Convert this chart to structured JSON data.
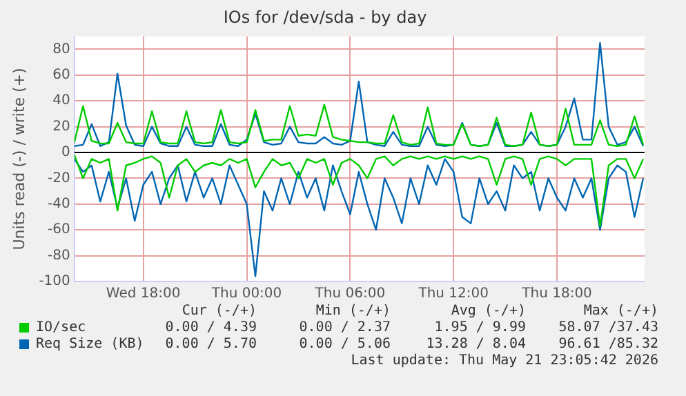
{
  "chart_data": {
    "type": "line",
    "title": "IOs for /dev/sda - by day",
    "ylabel": "Units read (-) / write (+)",
    "x": [
      "2026-05-20T14:00",
      "2026-05-20T14:30",
      "2026-05-20T15:00",
      "2026-05-20T15:30",
      "2026-05-20T16:00",
      "2026-05-20T16:30",
      "2026-05-20T17:00",
      "2026-05-20T17:30",
      "2026-05-20T18:00",
      "2026-05-20T18:30",
      "2026-05-20T19:00",
      "2026-05-20T19:30",
      "2026-05-20T20:00",
      "2026-05-20T20:30",
      "2026-05-20T21:00",
      "2026-05-20T21:30",
      "2026-05-20T22:00",
      "2026-05-20T22:30",
      "2026-05-20T23:00",
      "2026-05-20T23:30",
      "2026-05-21T00:00",
      "2026-05-21T00:30",
      "2026-05-21T01:00",
      "2026-05-21T01:30",
      "2026-05-21T02:00",
      "2026-05-21T02:30",
      "2026-05-21T03:00",
      "2026-05-21T03:30",
      "2026-05-21T04:00",
      "2026-05-21T04:30",
      "2026-05-21T05:00",
      "2026-05-21T05:30",
      "2026-05-21T06:00",
      "2026-05-21T06:30",
      "2026-05-21T07:00",
      "2026-05-21T07:30",
      "2026-05-21T08:00",
      "2026-05-21T08:30",
      "2026-05-21T09:00",
      "2026-05-21T09:30",
      "2026-05-21T10:00",
      "2026-05-21T10:30",
      "2026-05-21T11:00",
      "2026-05-21T11:30",
      "2026-05-21T12:00",
      "2026-05-21T12:30",
      "2026-05-21T13:00",
      "2026-05-21T13:30",
      "2026-05-21T14:00",
      "2026-05-21T14:30",
      "2026-05-21T15:00",
      "2026-05-21T15:30",
      "2026-05-21T16:00",
      "2026-05-21T16:30",
      "2026-05-21T17:00",
      "2026-05-21T17:30",
      "2026-05-21T18:00",
      "2026-05-21T18:30",
      "2026-05-21T19:00",
      "2026-05-21T19:30",
      "2026-05-21T20:00",
      "2026-05-21T20:30",
      "2026-05-21T21:00",
      "2026-05-21T21:30",
      "2026-05-21T22:00",
      "2026-05-21T22:30",
      "2026-05-21T23:00"
    ],
    "series": [
      {
        "color": "#00cc00",
        "values": [
          -2,
          -20,
          -5,
          -8,
          -5,
          -45,
          -10,
          -8,
          -5,
          -3,
          -8,
          -35,
          -10,
          -5,
          -15,
          -10,
          -8,
          -10,
          -5,
          -8,
          -5,
          -27,
          -15,
          -5,
          -10,
          -8,
          -20,
          -5,
          -8,
          -5,
          -25,
          -8,
          -5,
          -10,
          -20,
          -5,
          -3,
          -10,
          -5,
          -3,
          -5,
          -3,
          -5,
          -3,
          -5,
          -3,
          -5,
          -3,
          -5,
          -25,
          -5,
          -3,
          -5,
          -25,
          -5,
          -3,
          -5,
          -10,
          -5,
          -5,
          -5,
          -57,
          -10,
          -5,
          -5,
          -20,
          -5
        ]
      },
      {
        "name": "IO/sec",
        "color": "#00cc00",
        "values": [
          8,
          36,
          9,
          7,
          7,
          23,
          8,
          7,
          7,
          32,
          8,
          7,
          7,
          32,
          8,
          7,
          8,
          33,
          8,
          7,
          8,
          33,
          9,
          10,
          10,
          36,
          13,
          14,
          13,
          37,
          12,
          10,
          9,
          8,
          8,
          7,
          7,
          29,
          8,
          6,
          7,
          35,
          7,
          6,
          6,
          22,
          6,
          5,
          6,
          27,
          6,
          5,
          6,
          31,
          6,
          5,
          6,
          34,
          6,
          6,
          6,
          25,
          6,
          5,
          6,
          28,
          6
        ]
      },
      {
        "color": "#0066b3",
        "values": [
          -5,
          -15,
          -10,
          -38,
          -15,
          -43,
          -20,
          -53,
          -25,
          -15,
          -40,
          -20,
          -10,
          -38,
          -15,
          -35,
          -20,
          -40,
          -10,
          -25,
          -40,
          -96,
          -30,
          -45,
          -20,
          -40,
          -15,
          -35,
          -20,
          -45,
          -10,
          -30,
          -48,
          -15,
          -40,
          -60,
          -20,
          -35,
          -55,
          -20,
          -40,
          -10,
          -25,
          -5,
          -15,
          -50,
          -55,
          -20,
          -40,
          -30,
          -45,
          -10,
          -20,
          -15,
          -45,
          -20,
          -35,
          -45,
          -20,
          -35,
          -20,
          -60,
          -20,
          -10,
          -15,
          -50,
          -20
        ]
      },
      {
        "name": "Req Size (KB)",
        "color": "#0066b3",
        "values": [
          5,
          6,
          22,
          5,
          8,
          61,
          21,
          6,
          5,
          20,
          7,
          5,
          5,
          20,
          6,
          5,
          5,
          22,
          6,
          5,
          10,
          30,
          8,
          6,
          7,
          20,
          8,
          7,
          7,
          12,
          7,
          6,
          9,
          55,
          8,
          6,
          5,
          16,
          6,
          5,
          5,
          20,
          6,
          5,
          6,
          23,
          6,
          5,
          6,
          23,
          5,
          5,
          6,
          16,
          6,
          5,
          6,
          20,
          42,
          10,
          10,
          85,
          20,
          6,
          8,
          20,
          5
        ]
      }
    ],
    "xlim": [
      "2026-05-20T14:00",
      "2026-05-21T23:05"
    ],
    "xticks": [
      {
        "value": "2026-05-20T18:00",
        "label": "Wed 18:00"
      },
      {
        "value": "2026-05-21T00:00",
        "label": "Thu 00:00"
      },
      {
        "value": "2026-05-21T06:00",
        "label": "Thu 06:00"
      },
      {
        "value": "2026-05-21T12:00",
        "label": "Thu 12:00"
      },
      {
        "value": "2026-05-21T18:00",
        "label": "Thu 18:00"
      }
    ],
    "ylim": [
      -100,
      90
    ],
    "yticks": [
      -100,
      -80,
      -60,
      -40,
      -20,
      0,
      20,
      40,
      60,
      80
    ],
    "grid": true,
    "legend": "bottom",
    "marker": "none",
    "line_style": "solid",
    "annotations": [
      "Cur (-/+)",
      "Min (-/+)",
      "Avg (-/+)",
      "Max (-/+)",
      "0.00 / 4.39",
      "0.00 / 2.37",
      "1.95 / 9.99",
      "58.07 /37.43",
      "0.00 / 5.70",
      "0.00 / 5.06",
      "13.28 / 8.04",
      "96.61 /85.32",
      "Last update: Thu May 21 23:05:42 2026"
    ]
  }
}
